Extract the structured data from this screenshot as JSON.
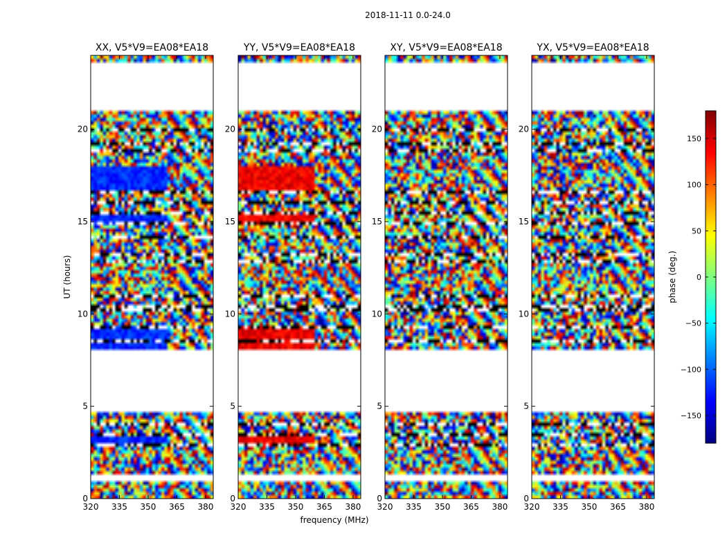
{
  "chart_data": {
    "type": "heatmap",
    "suptitle": "2018-11-11 0.0-24.0",
    "xlabel": "frequency (MHz)",
    "ylabel": "UT (hours)",
    "xlim": [
      320,
      384
    ],
    "ylim": [
      0,
      24
    ],
    "x_ticks": [
      "320",
      "335",
      "350",
      "365",
      "380"
    ],
    "x_tick_values": [
      320,
      335,
      350,
      365,
      380
    ],
    "y_ticks": [
      "0",
      "5",
      "10",
      "15",
      "20"
    ],
    "y_tick_values": [
      0,
      5,
      10,
      15,
      20
    ],
    "panels": [
      {
        "title": "XX, V5*V9=EA08*EA18",
        "pol": "XX",
        "base_phase": -120
      },
      {
        "title": "YY, V5*V9=EA08*EA18",
        "pol": "YY",
        "base_phase": 140
      },
      {
        "title": "XY, V5*V9=EA08*EA18",
        "pol": "XY",
        "base_phase": 20
      },
      {
        "title": "YX, V5*V9=EA08*EA18",
        "pol": "YX",
        "base_phase": 0
      }
    ],
    "data_blocks_ut": [
      [
        0.0,
        0.9
      ],
      [
        1.4,
        2.8
      ],
      [
        2.9,
        4.7
      ],
      [
        8.1,
        21.0
      ],
      [
        23.7,
        24.0
      ]
    ],
    "gap_lines_ut": [
      1.15,
      2.85,
      3.5,
      4.0,
      8.6,
      9.2,
      10.2,
      10.45,
      11.0,
      12.8,
      13.3,
      14.1,
      14.9,
      15.4,
      16.1,
      16.6,
      18.0,
      18.8,
      19.3,
      20.0
    ],
    "colorbar": {
      "label": "phase (deg.)",
      "range": [
        -180,
        180
      ],
      "ticks": [
        "150",
        "100",
        "50",
        "0",
        "−50",
        "−100",
        "−150"
      ],
      "tick_values": [
        150,
        100,
        50,
        0,
        -50,
        -100,
        -150
      ],
      "colormap": [
        "#00007f",
        "#0000ff",
        "#007fff",
        "#00ffff",
        "#7fff7f",
        "#ffff00",
        "#ff7f00",
        "#ff0000",
        "#7f0000"
      ]
    }
  }
}
